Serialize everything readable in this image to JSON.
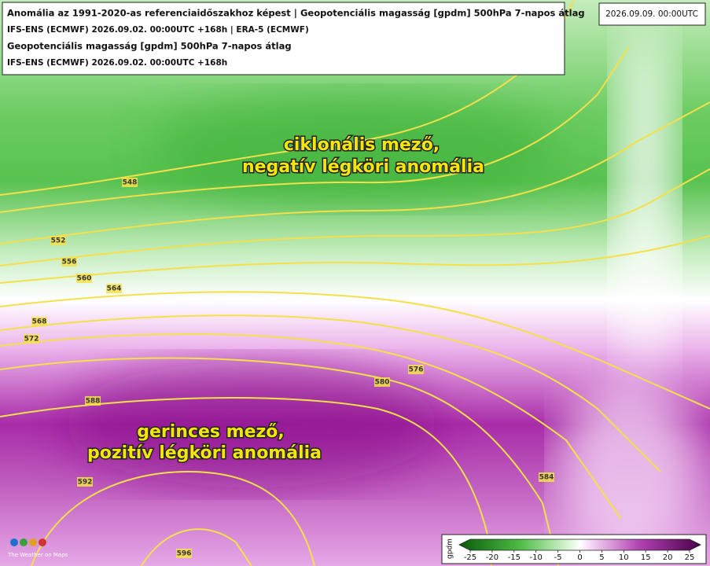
{
  "header": {
    "line1": "Anomália az 1991-2020-as referenciaidőszakhoz képest | Geopotenciális magasság [gpdm] 500hPa 7-napos átlag",
    "line2": "IFS-ENS (ECMWF) 2026.09.02. 00:00UTC +168h | ERA-5 (ECMWF)",
    "line3": "Geopotenciális magasság [gpdm] 500hPa 7-napos átlag",
    "line4": "IFS-ENS (ECMWF) 2026.09.02. 00:00UTC +168h"
  },
  "valid_time": "2026.09.09. 00:00UTC",
  "annotations": {
    "north_1": "ciklonális mező,",
    "north_2": "negatív légköri anomália",
    "south_1": "gerinces mező,",
    "south_2": "pozitív légköri anomália"
  },
  "contour_labels": [
    548,
    552,
    556,
    560,
    564,
    568,
    572,
    576,
    580,
    584,
    588,
    592,
    596
  ],
  "colorbar": {
    "label": "gpdm",
    "ticks": [
      -25,
      -20,
      -15,
      -10,
      -5,
      0,
      5,
      10,
      15,
      20,
      25
    ]
  },
  "logo_text": "The Weather on Maps"
}
